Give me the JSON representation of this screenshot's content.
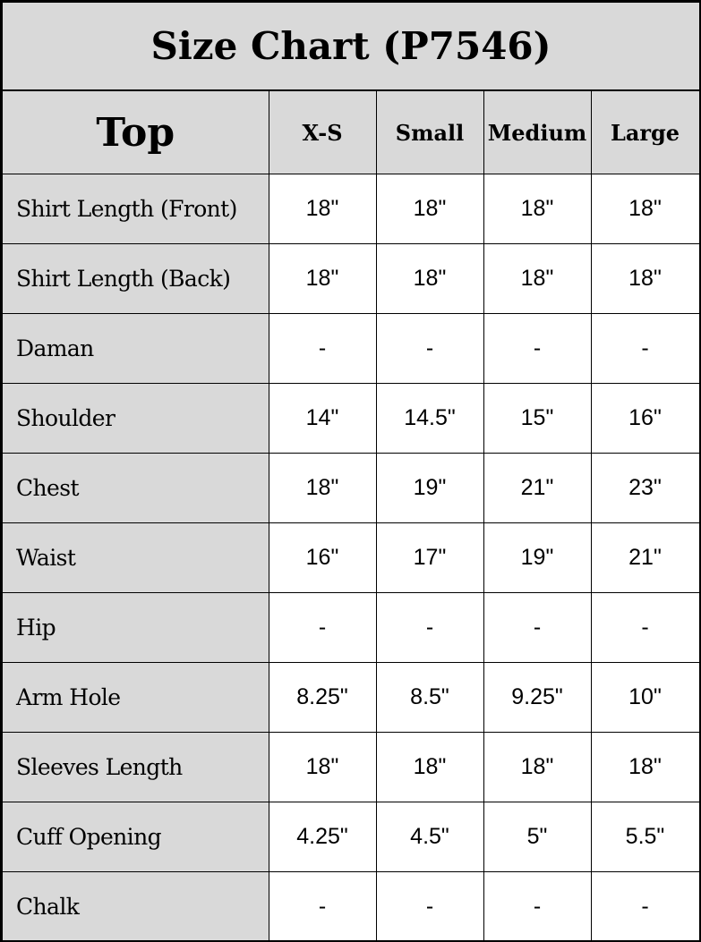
{
  "title": "Size Chart (P7546)",
  "header": {
    "section": "Top",
    "sizes": [
      "X-S",
      "Small",
      "Medium",
      "Large"
    ]
  },
  "rows": [
    {
      "label": "Shirt Length (Front)",
      "values": [
        "18\"",
        "18\"",
        "18\"",
        "18\""
      ]
    },
    {
      "label": "Shirt Length (Back)",
      "values": [
        "18\"",
        "18\"",
        "18\"",
        "18\""
      ]
    },
    {
      "label": "Daman",
      "values": [
        "-",
        "-",
        "-",
        "-"
      ]
    },
    {
      "label": "Shoulder",
      "values": [
        "14\"",
        "14.5\"",
        "15\"",
        "16\""
      ]
    },
    {
      "label": "Chest",
      "values": [
        "18\"",
        "19\"",
        "21\"",
        "23\""
      ]
    },
    {
      "label": "Waist",
      "values": [
        "16\"",
        "17\"",
        "19\"",
        "21\""
      ]
    },
    {
      "label": "Hip",
      "values": [
        "-",
        "-",
        "-",
        "-"
      ]
    },
    {
      "label": "Arm Hole",
      "values": [
        "8.25\"",
        "8.5\"",
        "9.25\"",
        "10\""
      ]
    },
    {
      "label": "Sleeves Length",
      "values": [
        "18\"",
        "18\"",
        "18\"",
        "18\""
      ]
    },
    {
      "label": "Cuff Opening",
      "values": [
        "4.25\"",
        "4.5\"",
        "5\"",
        "5.5\""
      ]
    },
    {
      "label": "Chalk",
      "values": [
        "-",
        "-",
        "-",
        "-"
      ]
    }
  ],
  "colors": {
    "header_bg": "#d9d9d9",
    "cell_bg": "#ffffff",
    "border": "#000000"
  }
}
